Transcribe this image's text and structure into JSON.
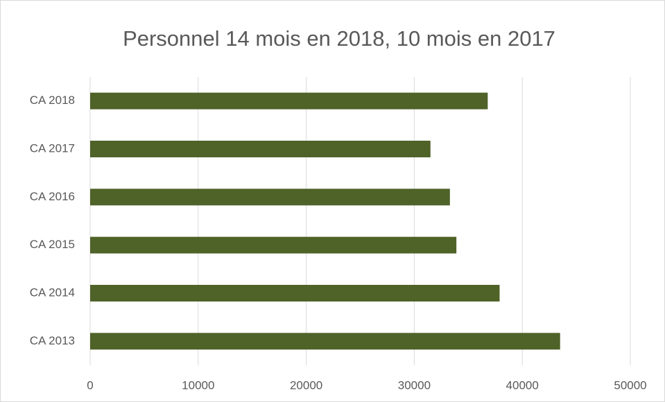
{
  "chart_data": {
    "type": "bar",
    "orientation": "horizontal",
    "title": "Personnel 14 mois en 2018, 10 mois en 2017",
    "categories": [
      "CA 2018",
      "CA 2017",
      "CA 2016",
      "CA 2015",
      "CA 2014",
      "CA 2013"
    ],
    "values": [
      36800,
      31500,
      33300,
      33900,
      37900,
      43500
    ],
    "color": "#4f6228",
    "xlim": [
      0,
      50000
    ],
    "xticks": [
      0,
      10000,
      20000,
      30000,
      40000,
      50000
    ],
    "grid": true
  }
}
